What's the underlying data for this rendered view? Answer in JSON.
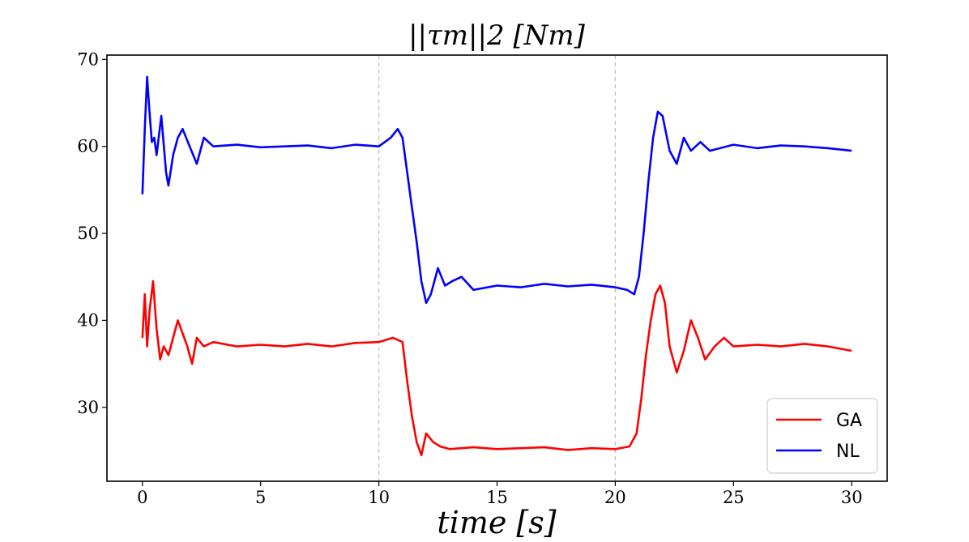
{
  "chart_data": {
    "type": "line",
    "title": "||τm||2 [Nm]",
    "xlabel": "time [s]",
    "ylabel": "",
    "xlim": [
      -1.5,
      31.5
    ],
    "ylim": [
      21.5,
      70.5
    ],
    "xticks": [
      0,
      5,
      10,
      15,
      20,
      25,
      30
    ],
    "yticks": [
      30,
      40,
      50,
      60,
      70
    ],
    "vlines": [
      10,
      20
    ],
    "grid": false,
    "legend_position": "bottom-right",
    "series": [
      {
        "name": "GA",
        "color": "#ff0000",
        "x": [
          0,
          0.1,
          0.2,
          0.3,
          0.45,
          0.6,
          0.75,
          0.9,
          1.1,
          1.3,
          1.5,
          1.7,
          1.9,
          2.1,
          2.3,
          2.6,
          3.0,
          4,
          5,
          6,
          7,
          8,
          9,
          10,
          10.6,
          11.0,
          11.2,
          11.4,
          11.6,
          11.8,
          12.0,
          12.3,
          12.6,
          13.0,
          14,
          15,
          16,
          17,
          18,
          19,
          20,
          20.6,
          20.9,
          21.1,
          21.3,
          21.5,
          21.7,
          21.9,
          22.1,
          22.3,
          22.6,
          22.9,
          23.2,
          23.5,
          23.8,
          24.2,
          24.6,
          25,
          26,
          27,
          28,
          29,
          30
        ],
        "y": [
          38,
          43,
          37,
          41,
          44.5,
          39,
          35.5,
          37,
          36,
          38,
          40,
          38.5,
          37,
          35,
          38,
          37,
          37.5,
          37,
          37.2,
          37,
          37.3,
          37,
          37.4,
          37.5,
          38,
          37.5,
          33,
          29,
          26,
          24.5,
          27,
          26,
          25.5,
          25.2,
          25.4,
          25.2,
          25.3,
          25.4,
          25.1,
          25.3,
          25.2,
          25.5,
          27,
          31,
          36,
          40,
          43,
          44,
          42,
          37,
          34,
          36.5,
          40,
          38,
          35.5,
          37,
          38,
          37,
          37.2,
          37,
          37.3,
          37,
          36.5
        ]
      },
      {
        "name": "NL",
        "color": "#0000ff",
        "x": [
          0,
          0.1,
          0.2,
          0.3,
          0.4,
          0.5,
          0.6,
          0.8,
          1.0,
          1.1,
          1.3,
          1.5,
          1.7,
          2.0,
          2.3,
          2.6,
          3.0,
          4,
          5,
          6,
          7,
          8,
          9,
          10,
          10.5,
          10.8,
          11.0,
          11.2,
          11.4,
          11.6,
          11.8,
          12.0,
          12.2,
          12.5,
          12.8,
          13.1,
          13.5,
          14,
          15,
          16,
          17,
          18,
          19,
          20,
          20.5,
          20.8,
          21.0,
          21.2,
          21.4,
          21.6,
          21.8,
          22.0,
          22.3,
          22.6,
          22.9,
          23.2,
          23.6,
          24,
          25,
          26,
          27,
          28,
          29,
          30
        ],
        "y": [
          54.5,
          62,
          68,
          64,
          60.5,
          61,
          59,
          63.5,
          57,
          55.5,
          59,
          61,
          62,
          60,
          58,
          61,
          60,
          60.2,
          59.9,
          60,
          60.1,
          59.8,
          60.2,
          60,
          61,
          62,
          61,
          57,
          53,
          49,
          44.5,
          42,
          43,
          46,
          44,
          44.5,
          45,
          43.5,
          44,
          43.8,
          44.2,
          43.9,
          44.1,
          43.8,
          43.5,
          43,
          45,
          50,
          56,
          61,
          64,
          63.5,
          59.5,
          58,
          61,
          59.5,
          60.5,
          59.5,
          60.2,
          59.8,
          60.1,
          60,
          59.8,
          59.5
        ]
      }
    ]
  }
}
